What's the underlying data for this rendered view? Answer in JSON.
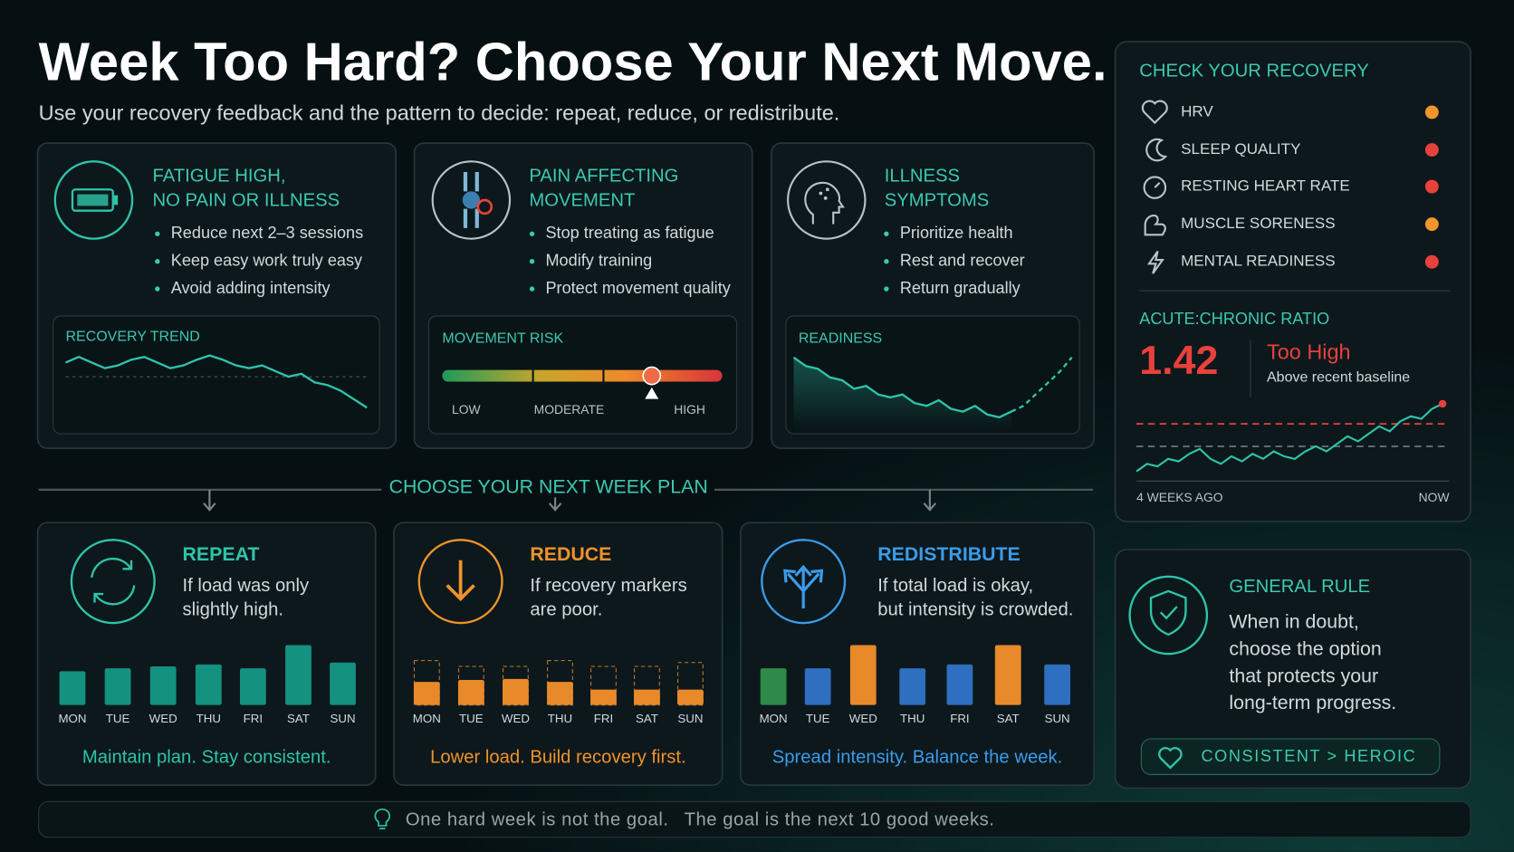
{
  "header": {
    "title": "Week Too Hard?  Choose Your Next Move.",
    "subtitle": "Use your recovery feedback and the pattern to decide: repeat, reduce, or redistribute."
  },
  "scenarios": [
    {
      "title": [
        "FATIGUE HIGH,",
        "NO PAIN OR ILLNESS"
      ],
      "bullets": [
        "Reduce next 2–3 sessions",
        "Keep easy work truly easy",
        "Avoid adding intensity"
      ],
      "panel": {
        "label": "RECOVERY TREND",
        "values": [
          62,
          66,
          62,
          58,
          60,
          64,
          66,
          62,
          58,
          60,
          64,
          67,
          64,
          60,
          58,
          60,
          56,
          52,
          54,
          48,
          46,
          42,
          36,
          30
        ]
      }
    },
    {
      "title": [
        "PAIN AFFECTING",
        "MOVEMENT"
      ],
      "bullets": [
        "Stop treating as fatigue",
        "Modify training",
        "Protect movement quality"
      ],
      "panel": {
        "label": "MOVEMENT RISK",
        "scale": [
          "LOW",
          "MODERATE",
          "HIGH"
        ]
      }
    },
    {
      "title": [
        "ILLNESS",
        "SYMPTOMS"
      ],
      "bullets": [
        "Prioritize health",
        "Rest and recover",
        "Return gradually"
      ],
      "panel": {
        "label": "READINESS",
        "values": [
          72,
          66,
          64,
          58,
          56,
          50,
          52,
          46,
          44,
          46,
          40,
          38,
          42,
          36,
          34,
          38,
          32,
          30,
          34,
          null,
          null,
          null,
          null,
          null
        ],
        "projected": [
          null,
          null,
          null,
          null,
          null,
          null,
          null,
          null,
          null,
          null,
          null,
          null,
          null,
          null,
          null,
          null,
          null,
          null,
          34,
          38,
          46,
          54,
          62,
          72
        ]
      }
    }
  ],
  "plan_heading": "CHOOSE YOUR NEXT WEEK PLAN",
  "days": [
    "MON",
    "TUE",
    "WED",
    "THU",
    "FRI",
    "SAT",
    "SUN"
  ],
  "plans": [
    {
      "title": "REPEAT",
      "condition": [
        "If load was only",
        "slightly high."
      ],
      "values": [
        35,
        38,
        40,
        42,
        38,
        62,
        44
      ],
      "colors": [
        "#14917f",
        "#14917f",
        "#14917f",
        "#14917f",
        "#14917f",
        "#14917f",
        "#14917f"
      ],
      "footer": "Maintain plan. Stay consistent.",
      "color": "#2ec4a9"
    },
    {
      "title": "REDUCE",
      "condition": [
        "If recovery markers",
        "are poor."
      ],
      "values": [
        24,
        26,
        27,
        24,
        16,
        16,
        16
      ],
      "previous": [
        46,
        40,
        40,
        46,
        40,
        40,
        44
      ],
      "colors": [
        "#e8892a",
        "#e8892a",
        "#e8892a",
        "#e8892a",
        "#e8892a",
        "#e8892a",
        "#e8892a"
      ],
      "footer": "Lower load. Build recovery first.",
      "color": "#f0922b"
    },
    {
      "title": "REDISTRIBUTE",
      "condition": [
        "If total load is okay,",
        "but intensity is crowded."
      ],
      "values": [
        38,
        38,
        62,
        38,
        42,
        62,
        42
      ],
      "colors": [
        "#2e8a48",
        "#2f6fc0",
        "#e8892a",
        "#2f6fc0",
        "#2f6fc0",
        "#e8892a",
        "#2f6fc0"
      ],
      "footer": "Spread intensity. Balance the week.",
      "color": "#3b9bea"
    }
  ],
  "recovery": {
    "title": "CHECK YOUR RECOVERY",
    "items": [
      {
        "label": "HRV",
        "status": "#f0962a"
      },
      {
        "label": "SLEEP QUALITY",
        "status": "#e8413c"
      },
      {
        "label": "RESTING HEART RATE",
        "status": "#e8413c"
      },
      {
        "label": "MUSCLE SORENESS",
        "status": "#f0962a"
      },
      {
        "label": "MENTAL READINESS",
        "status": "#e8413c"
      }
    ],
    "ratio": {
      "label": "ACUTE:CHRONIC RATIO",
      "value": 1.42,
      "verdict": "Too High",
      "note": "Above recent baseline",
      "values": [
        20,
        26,
        24,
        30,
        28,
        34,
        38,
        30,
        26,
        32,
        28,
        34,
        30,
        36,
        32,
        30,
        36,
        40,
        36,
        42,
        48,
        44,
        50,
        56,
        52,
        60,
        64,
        62,
        70,
        74
      ],
      "limits": [
        {
          "value": 58,
          "color": "#e8413c"
        },
        {
          "value": 40,
          "color": "#6b7679"
        }
      ],
      "x_labels": [
        "4 WEEKS AGO",
        "NOW"
      ]
    }
  },
  "rule": {
    "title": "GENERAL RULE",
    "text": [
      "When in doubt,",
      "choose the option",
      "that protects your",
      "long-term progress."
    ],
    "badge": "CONSISTENT > HEROIC"
  },
  "footer": {
    "parts": [
      "One hard week is not the goal.",
      "The goal is the next 10 good weeks."
    ]
  }
}
